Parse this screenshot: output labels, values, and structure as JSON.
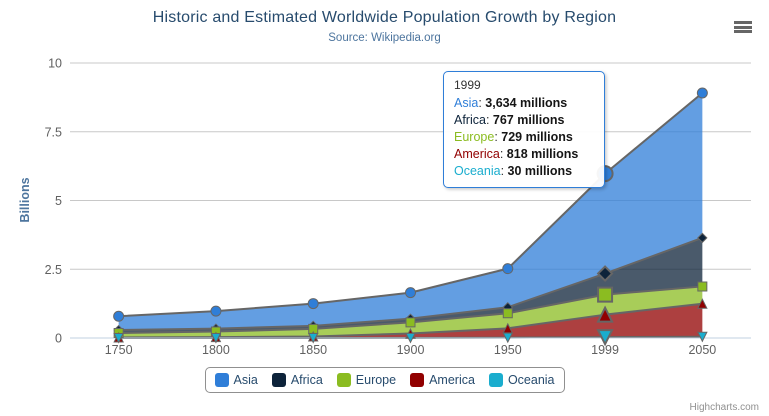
{
  "chart": {
    "title": "Historic and Estimated Worldwide Population Growth by Region",
    "subtitle": "Source: Wikipedia.org",
    "credits": "Highcharts.com"
  },
  "chart_data": {
    "type": "area",
    "stacking": "normal",
    "title": "Historic and Estimated Worldwide Population Growth by Region",
    "subtitle": "Source: Wikipedia.org",
    "categories": [
      "1750",
      "1800",
      "1850",
      "1900",
      "1950",
      "1999",
      "2050"
    ],
    "xlabel": "",
    "ylabel": "Billions",
    "ylim": [
      0,
      10
    ],
    "yticks": [
      0,
      2.5,
      5,
      7.5,
      10
    ],
    "values_unit": "millions",
    "yaxis_scale_divisor": 1000,
    "grid": "horizontal",
    "legend_position": "bottom-center",
    "stack_order_bottom_to_top": [
      "Oceania",
      "America",
      "Europe",
      "Africa",
      "Asia"
    ],
    "series": [
      {
        "name": "Asia",
        "color": "#2f7ed8",
        "marker": "circle",
        "values": [
          502,
          635,
          809,
          947,
          1402,
          3634,
          5268
        ]
      },
      {
        "name": "Africa",
        "color": "#0d233a",
        "marker": "diamond",
        "values": [
          106,
          107,
          111,
          133,
          221,
          767,
          1766
        ]
      },
      {
        "name": "Europe",
        "color": "#8bbc21",
        "marker": "square",
        "values": [
          163,
          203,
          276,
          408,
          547,
          729,
          628
        ]
      },
      {
        "name": "America",
        "color": "#910000",
        "marker": "triangle",
        "values": [
          18,
          31,
          54,
          156,
          339,
          818,
          1201
        ]
      },
      {
        "name": "Oceania",
        "color": "#1aadce",
        "marker": "triangle-down",
        "values": [
          2,
          2,
          2,
          6,
          13,
          30,
          46
        ]
      }
    ],
    "style": {
      "line_color": "#666666",
      "fill_opacity": 0.75,
      "grid_color": "#c8c8c8",
      "axis_line_color": "#c0d0e0",
      "axis_label_color": "#606060",
      "yaxis_title_color": "#4d759e"
    }
  },
  "tooltip": {
    "header": "1999",
    "hover_category": "1999",
    "border_color": "#2f7ed8",
    "rows": [
      {
        "name": "Asia",
        "color": "#2f7ed8",
        "value": "3,634 millions"
      },
      {
        "name": "Africa",
        "color": "#0d233a",
        "value": "767 millions"
      },
      {
        "name": "Europe",
        "color": "#8bbc21",
        "value": "729 millions"
      },
      {
        "name": "America",
        "color": "#910000",
        "value": "818 millions"
      },
      {
        "name": "Oceania",
        "color": "#1aadce",
        "value": "30 millions"
      }
    ]
  },
  "legend": {
    "items": [
      {
        "label": "Asia",
        "color": "#2f7ed8"
      },
      {
        "label": "Africa",
        "color": "#0d233a"
      },
      {
        "label": "Europe",
        "color": "#8bbc21"
      },
      {
        "label": "America",
        "color": "#910000"
      },
      {
        "label": "Oceania",
        "color": "#1aadce"
      }
    ]
  }
}
